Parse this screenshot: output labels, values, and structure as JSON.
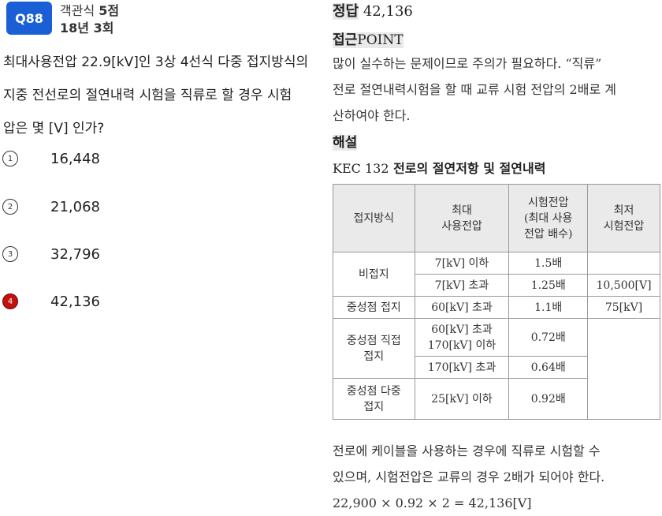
{
  "question": {
    "number": "Q88",
    "type_prefix": "객관식",
    "type_points": "5점",
    "exam": "18년 3회",
    "lines": [
      "최대사용전압 22.9[kV]인 3상 4선식 다중 접지방식의",
      "지중 전선로의 절연내력 시험을 직류로 할 경우 시험",
      "압은 몇 [V] 인가?"
    ]
  },
  "choices": [
    {
      "num": "1",
      "value": "16,448",
      "selected": false
    },
    {
      "num": "2",
      "value": "21,068",
      "selected": false
    },
    {
      "num": "3",
      "value": "32,796",
      "selected": false
    },
    {
      "num": "4",
      "value": "42,136",
      "selected": true
    }
  ],
  "answer": {
    "label": "정답",
    "value": "42,136"
  },
  "approach": {
    "label": "접근",
    "point": "POINT"
  },
  "approach_lines": [
    "많이 실수하는 문제이므로 주의가 필요하다. “직류”",
    "전로 절연내력시험을 할 때 교류 시험 전압의 2배로 계",
    "산하여야 한다."
  ],
  "explanation_label": "해설",
  "kec": {
    "code": "KEC 132",
    "title": "전로의 절연저항 및 절연내력"
  },
  "table": {
    "headers": [
      "접지방식",
      "최대\n사용전압",
      "시험전압\n(최대 사용\n전압 배수)",
      "최저\n시험전압"
    ],
    "rows": {
      "r1": {
        "method": "비접지",
        "voltage": "7[kV] 이하",
        "multiple": "1.5배",
        "min": ""
      },
      "r2": {
        "voltage": "7[kV] 초과",
        "multiple": "1.25배",
        "min": "10,500[V]"
      },
      "r3": {
        "method": "중성점 접지",
        "voltage": "60[kV] 초과",
        "multiple": "1.1배",
        "min": "75[kV]"
      },
      "r4": {
        "method": "중성점 직접\n접지",
        "voltage": "60[kV] 초과\n170[kV] 이하",
        "multiple": "0.72배",
        "min": ""
      },
      "r5": {
        "voltage": "170[kV] 초과",
        "multiple": "0.64배",
        "min": ""
      },
      "r6": {
        "method": "중성점 다중\n접지",
        "voltage": "25[kV] 이하",
        "multiple": "0.92배",
        "min": ""
      }
    }
  },
  "bottom_lines": [
    "전로에 케이블을 사용하는 경우에 직류로 시험할 수",
    "있으며, 시험전압은 교류의 경우 2배가 되어야 한다.",
    "22,900 × 0.92 × 2 = 42,136[V]"
  ]
}
